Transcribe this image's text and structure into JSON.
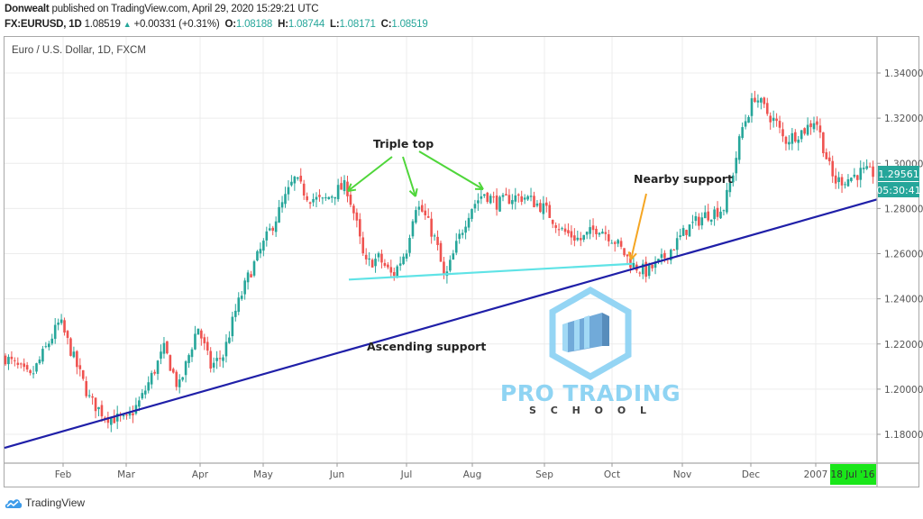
{
  "header": {
    "author": "Donwealt",
    "published_text": "published on TradingView.com, April 29, 2020 15:29:21 UTC",
    "symbol": "FX:EURUSD, 1D",
    "last": "1.08519",
    "change": "+0.00331 (+0.31%)",
    "open_label": "O:",
    "open": "1.08188",
    "high_label": "H:",
    "high": "1.08744",
    "low_label": "L:",
    "low": "1.08171",
    "close_label": "C:",
    "close": "1.08519"
  },
  "pane": {
    "title": "Euro / U.S. Dollar, 1D, FXCM"
  },
  "price_axis": {
    "ticks": [
      "1.34000",
      "1.32000",
      "1.30000",
      "1.28000",
      "1.26000",
      "1.24000",
      "1.22000",
      "1.20000",
      "1.18000"
    ],
    "current_price": "1.29561",
    "countdown": "05:30:41"
  },
  "time_axis": {
    "ticks": [
      "Feb",
      "Mar",
      "Apr",
      "May",
      "Jun",
      "Jul",
      "Aug",
      "Sep",
      "Oct",
      "Nov",
      "Dec",
      "2007"
    ],
    "cursor_label": "18 Jul '16"
  },
  "annotations": {
    "triple_top": "Triple top",
    "nearby_support": "Nearby support",
    "ascending_support": "Ascending support"
  },
  "watermark": {
    "line1": "PRO TRADING",
    "line2": "S C H O O L"
  },
  "footer": {
    "brand": "TradingView"
  },
  "colors": {
    "up": "#26a69a",
    "down": "#ef5350",
    "ascending_line": "#1f1fa8",
    "horizontal_support": "#5fe3e6",
    "triple_top_arrows": "#4fd63a",
    "nearby_arrow": "#f5a623",
    "price_label_bg": "#26a69a",
    "cursor_bg": "#19e619",
    "grid": "#ececec",
    "watermark": "#7ec8ef"
  },
  "chart_data": {
    "type": "candlestick",
    "title": "Euro / U.S. Dollar, 1D, FXCM",
    "xlabel": "",
    "ylabel": "",
    "x_range": [
      "2006-01-16",
      "2007-01-08"
    ],
    "ylim": [
      1.17,
      1.35
    ],
    "y_ticks": [
      1.18,
      1.2,
      1.22,
      1.24,
      1.26,
      1.28,
      1.3,
      1.32,
      1.34
    ],
    "x_ticks": [
      "Feb",
      "Mar",
      "Apr",
      "May",
      "Jun",
      "Jul",
      "Aug",
      "Sep",
      "Oct",
      "Nov",
      "Dec",
      "2007"
    ],
    "grid": true,
    "approx_close_path": [
      [
        "2006-01-16",
        1.212
      ],
      [
        "2006-01-22",
        1.205
      ],
      [
        "2006-01-31",
        1.23
      ],
      [
        "2006-02-06",
        1.213
      ],
      [
        "2006-02-13",
        1.195
      ],
      [
        "2006-02-20",
        1.188
      ],
      [
        "2006-03-01",
        1.186
      ],
      [
        "2006-03-07",
        1.195
      ],
      [
        "2006-03-17",
        1.218
      ],
      [
        "2006-03-23",
        1.2
      ],
      [
        "2006-03-31",
        1.228
      ],
      [
        "2006-04-06",
        1.21
      ],
      [
        "2006-04-12",
        1.215
      ],
      [
        "2006-04-18",
        1.235
      ],
      [
        "2006-04-24",
        1.25
      ],
      [
        "2006-04-30",
        1.262
      ],
      [
        "2006-05-06",
        1.275
      ],
      [
        "2006-05-14",
        1.293
      ],
      [
        "2006-05-20",
        1.285
      ],
      [
        "2006-05-26",
        1.283
      ],
      [
        "2006-06-01",
        1.288
      ],
      [
        "2006-06-05",
        1.29
      ],
      [
        "2006-06-09",
        1.275
      ],
      [
        "2006-06-13",
        1.255
      ],
      [
        "2006-06-19",
        1.258
      ],
      [
        "2006-06-25",
        1.25
      ],
      [
        "2006-07-01",
        1.262
      ],
      [
        "2006-07-05",
        1.282
      ],
      [
        "2006-07-09",
        1.278
      ],
      [
        "2006-07-15",
        1.265
      ],
      [
        "2006-07-19",
        1.248
      ],
      [
        "2006-07-25",
        1.265
      ],
      [
        "2006-07-31",
        1.28
      ],
      [
        "2006-08-06",
        1.287
      ],
      [
        "2006-08-12",
        1.282
      ],
      [
        "2006-08-18",
        1.285
      ],
      [
        "2006-08-24",
        1.285
      ],
      [
        "2006-09-01",
        1.28
      ],
      [
        "2006-09-09",
        1.27
      ],
      [
        "2006-09-17",
        1.266
      ],
      [
        "2006-09-25",
        1.272
      ],
      [
        "2006-10-02",
        1.266
      ],
      [
        "2006-10-10",
        1.255
      ],
      [
        "2006-10-16",
        1.252
      ],
      [
        "2006-10-22",
        1.256
      ],
      [
        "2006-10-28",
        1.263
      ],
      [
        "2006-11-03",
        1.271
      ],
      [
        "2006-11-11",
        1.277
      ],
      [
        "2006-11-19",
        1.28
      ],
      [
        "2006-11-23",
        1.295
      ],
      [
        "2006-11-27",
        1.315
      ],
      [
        "2006-12-03",
        1.33
      ],
      [
        "2006-12-09",
        1.322
      ],
      [
        "2006-12-13",
        1.318
      ],
      [
        "2006-12-17",
        1.31
      ],
      [
        "2006-12-21",
        1.312
      ],
      [
        "2006-12-27",
        1.315
      ],
      [
        "2007-01-01",
        1.32
      ],
      [
        "2007-01-05",
        1.305
      ],
      [
        "2007-01-09",
        1.292
      ],
      [
        "2007-01-15",
        1.293
      ],
      [
        "2007-01-21",
        1.296
      ],
      [
        "2007-01-27",
        1.2956
      ]
    ],
    "overlays": [
      {
        "type": "trendline",
        "name": "Ascending support",
        "from": [
          "2006-01-14",
          1.174
        ],
        "to": [
          "2007-01-27",
          1.284
        ]
      },
      {
        "type": "trendline",
        "name": "Horizontal support (cyan)",
        "from": [
          "2006-06-05",
          1.2485
        ],
        "to": [
          "2006-10-12",
          1.2555
        ]
      },
      {
        "type": "label",
        "text": "Triple top",
        "points": [
          "2006-06-05 1.290",
          "2006-07-06 1.283",
          "2006-08-06 1.288"
        ]
      },
      {
        "type": "label",
        "text": "Nearby support",
        "point": [
          "2006-10-12",
          1.255
        ]
      }
    ],
    "last_price": 1.29561
  }
}
